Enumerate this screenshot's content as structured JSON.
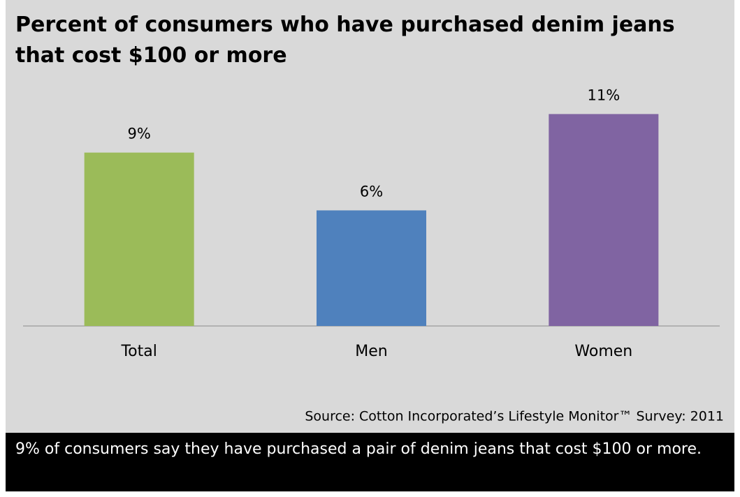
{
  "chart_data": {
    "type": "bar",
    "title": "Percent of consumers who have purchased denim jeans that cost $100 or more",
    "categories": [
      "Total",
      "Men",
      "Women"
    ],
    "values": [
      9,
      6,
      11
    ],
    "value_labels": [
      "9%",
      "6%",
      "11%"
    ],
    "colors": [
      "#9bbb59",
      "#4f81bd",
      "#8064a2"
    ],
    "source": "Source: Cotton Incorporated’s Lifestyle Monitor™ Survey:  2011",
    "note": "9% of consumers say they have purchased a pair of denim jeans that cost $100 or more."
  }
}
